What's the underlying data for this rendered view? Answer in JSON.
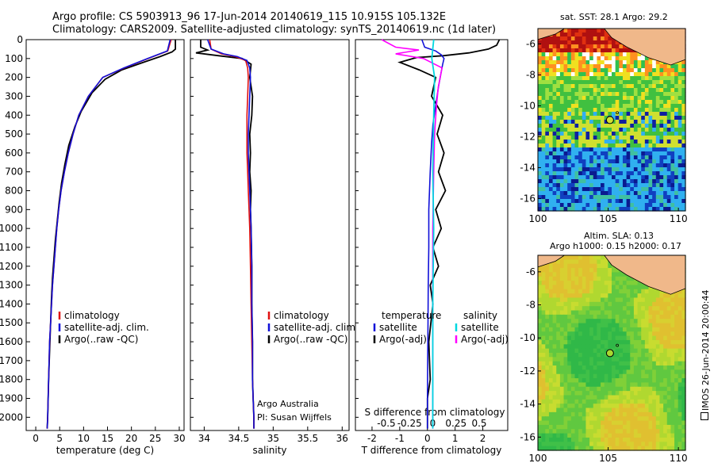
{
  "title_line1": "Argo profile: CS 5903913_96 17-Jun-2014 20140619_115 10.915S 105.132E",
  "title_line2": "Climatology: CARS2009. Satellite-adjusted climatology: synTS_20140619.nc (1d later)",
  "map_sst": {
    "title": "sat. SST: 28.1  Argo: 29.2",
    "xticks": [
      "100",
      "105",
      "110"
    ],
    "yticks": [
      "-6",
      "-8",
      "-10",
      "-12",
      "-14",
      "-16"
    ]
  },
  "map_sla": {
    "title_line1": "Altim. SLA: 0.13",
    "title_line2": "Argo h1000: 0.15 h2000: 0.17",
    "xticks": [
      "100",
      "105",
      "110"
    ],
    "yticks": [
      "-6",
      "-8",
      "-10",
      "-12",
      "-14",
      "-16"
    ]
  },
  "credit": "Argo Australia",
  "pi": "PI: Susan Wijffels",
  "imos_stamp": "IMOS 26-Jun-2014 20:00:44",
  "colors": {
    "climatology": "#e01010",
    "satellite_adj": "#1010d8",
    "argo": "#000000",
    "sat_salinity": "#00d8e0",
    "argo_salinity": "#ff00ff",
    "land": "#f0b88a"
  },
  "chart_data": [
    {
      "type": "line",
      "xlabel": "temperature (deg C)",
      "ylabel": "",
      "xlim": [
        -2,
        31
      ],
      "ylim": [
        2070,
        0
      ],
      "xticks": [
        0,
        5,
        10,
        15,
        20,
        25,
        30
      ],
      "yticks": [
        0,
        100,
        200,
        300,
        400,
        500,
        600,
        700,
        800,
        900,
        1000,
        1100,
        1200,
        1300,
        1400,
        1500,
        1600,
        1700,
        1800,
        1900,
        2000
      ],
      "legend": [
        "climatology",
        "satellite-adj. clim.",
        "Argo(..raw -QC)"
      ],
      "series": [
        {
          "name": "climatology",
          "x": [
            28.3,
            27.6,
            23.5,
            18.5,
            14.0,
            11.0,
            9.0,
            7.8,
            6.8,
            6.0,
            5.3,
            4.8,
            4.4,
            4.1,
            3.8,
            3.5,
            3.3,
            3.1,
            2.9,
            2.7,
            2.5,
            2.4
          ],
          "y": [
            0,
            60,
            100,
            150,
            200,
            300,
            400,
            500,
            600,
            700,
            800,
            900,
            1000,
            1100,
            1200,
            1300,
            1400,
            1500,
            1600,
            1800,
            2000,
            2060
          ]
        },
        {
          "name": "satellite-adj. clim.",
          "x": [
            28.1,
            27.5,
            23.4,
            18.4,
            14.0,
            11.0,
            9.0,
            7.8,
            6.8,
            6.0,
            5.3,
            4.8,
            4.4,
            4.1,
            3.8,
            3.5,
            3.3,
            3.1,
            2.9,
            2.7,
            2.5,
            2.4
          ],
          "y": [
            0,
            60,
            100,
            150,
            200,
            300,
            400,
            500,
            600,
            700,
            800,
            900,
            1000,
            1100,
            1200,
            1300,
            1400,
            1500,
            1600,
            1800,
            2000,
            2060
          ]
        },
        {
          "name": "Argo(..raw -QC)",
          "x": [
            29.2,
            29.2,
            28.5,
            26.0,
            22.5,
            18.0,
            14.5,
            11.8,
            9.5,
            8.2,
            6.9,
            6.1,
            5.4,
            4.9,
            4.5,
            4.1,
            3.8,
            3.5,
            3.3,
            3.1,
            2.9,
            2.7,
            2.5,
            2.4
          ],
          "y": [
            0,
            50,
            65,
            90,
            120,
            160,
            210,
            280,
            380,
            460,
            560,
            660,
            760,
            860,
            960,
            1060,
            1160,
            1260,
            1360,
            1500,
            1650,
            1800,
            2000,
            2060
          ]
        }
      ]
    },
    {
      "type": "line",
      "xlabel": "salinity",
      "ylabel": "",
      "xlim": [
        33.8,
        36.1
      ],
      "ylim": [
        2070,
        0
      ],
      "xticks": [
        34,
        34.5,
        35,
        35.5,
        36
      ],
      "legend": [
        "climatology",
        "satellite-adj. clim.",
        "Argo(..raw -QC)"
      ],
      "series": [
        {
          "name": "climatology",
          "x": [
            34.08,
            34.1,
            34.25,
            34.45,
            34.6,
            34.63,
            34.64,
            34.63,
            34.62,
            34.62,
            34.62,
            34.63,
            34.64,
            34.65,
            34.66,
            34.67,
            34.68,
            34.69,
            34.7,
            34.71,
            34.72,
            34.72
          ],
          "y": [
            0,
            50,
            75,
            90,
            110,
            150,
            200,
            300,
            400,
            500,
            600,
            700,
            800,
            900,
            1000,
            1200,
            1400,
            1600,
            1800,
            1900,
            2000,
            2060
          ]
        },
        {
          "name": "satellite-adj. clim.",
          "x": [
            34.05,
            34.1,
            34.28,
            34.48,
            34.62,
            34.66,
            34.67,
            34.66,
            34.65,
            34.64,
            34.64,
            34.65,
            34.66,
            34.67,
            34.68,
            34.69,
            34.69,
            34.7,
            34.7,
            34.71,
            34.72,
            34.72
          ],
          "y": [
            0,
            50,
            75,
            90,
            110,
            150,
            200,
            300,
            400,
            500,
            600,
            700,
            800,
            900,
            1000,
            1200,
            1400,
            1600,
            1800,
            1900,
            2000,
            2060
          ]
        },
        {
          "name": "Argo(..raw -QC)",
          "x": [
            33.95,
            33.95,
            34.05,
            33.88,
            34.2,
            34.55,
            34.68,
            34.66,
            34.7,
            34.69,
            34.66,
            34.67,
            34.66,
            34.68,
            34.67,
            34.68,
            34.69,
            34.69,
            34.7,
            34.7,
            34.71,
            34.72,
            34.72
          ],
          "y": [
            0,
            40,
            55,
            70,
            85,
            100,
            130,
            200,
            300,
            400,
            500,
            600,
            700,
            800,
            900,
            1000,
            1200,
            1400,
            1600,
            1800,
            1900,
            2000,
            2060
          ]
        }
      ]
    },
    {
      "type": "line",
      "xlabel": "T difference from climatology",
      "xlabel_top": "S difference from climatology",
      "ylabel": "",
      "xlim": [
        -2.6,
        2.9
      ],
      "ylim": [
        2070,
        0
      ],
      "xticks": [
        -2,
        -1,
        0,
        1,
        2
      ],
      "xticks_S": [
        -0.5,
        -0.25,
        0,
        0.25,
        0.5
      ],
      "legend_temperature_title": "temperature",
      "legend_salinity_title": "salinity",
      "legend": [
        "satellite",
        "Argo(-adj)",
        "satellite",
        "Argo(-adj)"
      ],
      "series": [
        {
          "name": "temperature satellite",
          "x": [
            -0.2,
            -0.1,
            0.3,
            0.5,
            0.6,
            0.55,
            0.5,
            0.4,
            0.3,
            0.2,
            0.15,
            0.1,
            0.05,
            0.05,
            0.03,
            0.02,
            0.01,
            0.0,
            0.0
          ],
          "y": [
            0,
            40,
            60,
            80,
            100,
            130,
            170,
            250,
            350,
            450,
            550,
            700,
            900,
            1100,
            1300,
            1500,
            1700,
            1900,
            2060
          ]
        },
        {
          "name": "temperature Argo(-adj)",
          "x": [
            2.6,
            2.5,
            2.2,
            1.5,
            0.6,
            -0.4,
            -1.0,
            -0.3,
            0.3,
            0.15,
            0.55,
            0.35,
            0.6,
            0.4,
            0.65,
            0.3,
            0.5,
            0.2,
            0.4,
            0.1,
            0.2,
            0.05,
            0.1,
            0.0,
            0.0
          ],
          "y": [
            0,
            30,
            50,
            70,
            85,
            95,
            120,
            160,
            200,
            300,
            400,
            500,
            600,
            700,
            800,
            900,
            1000,
            1100,
            1200,
            1300,
            1400,
            1600,
            1800,
            1900,
            2060
          ]
        },
        {
          "name": "salinity satellite",
          "x": [
            0.01,
            0.0,
            -0.01,
            0.02,
            0.01,
            0.0,
            0.01,
            0.0,
            0.0,
            0.0
          ],
          "y": [
            0,
            50,
            100,
            200,
            400,
            700,
            1000,
            1400,
            1800,
            2060
          ]
        },
        {
          "name": "salinity Argo(-adj)",
          "x": [
            -0.55,
            -0.4,
            -0.15,
            -0.4,
            -0.1,
            0.1,
            0.06,
            0.04,
            0.02,
            0.01,
            0.0,
            0.0
          ],
          "y": [
            0,
            40,
            55,
            75,
            100,
            150,
            250,
            350,
            500,
            700,
            1000,
            2060
          ]
        }
      ]
    }
  ]
}
